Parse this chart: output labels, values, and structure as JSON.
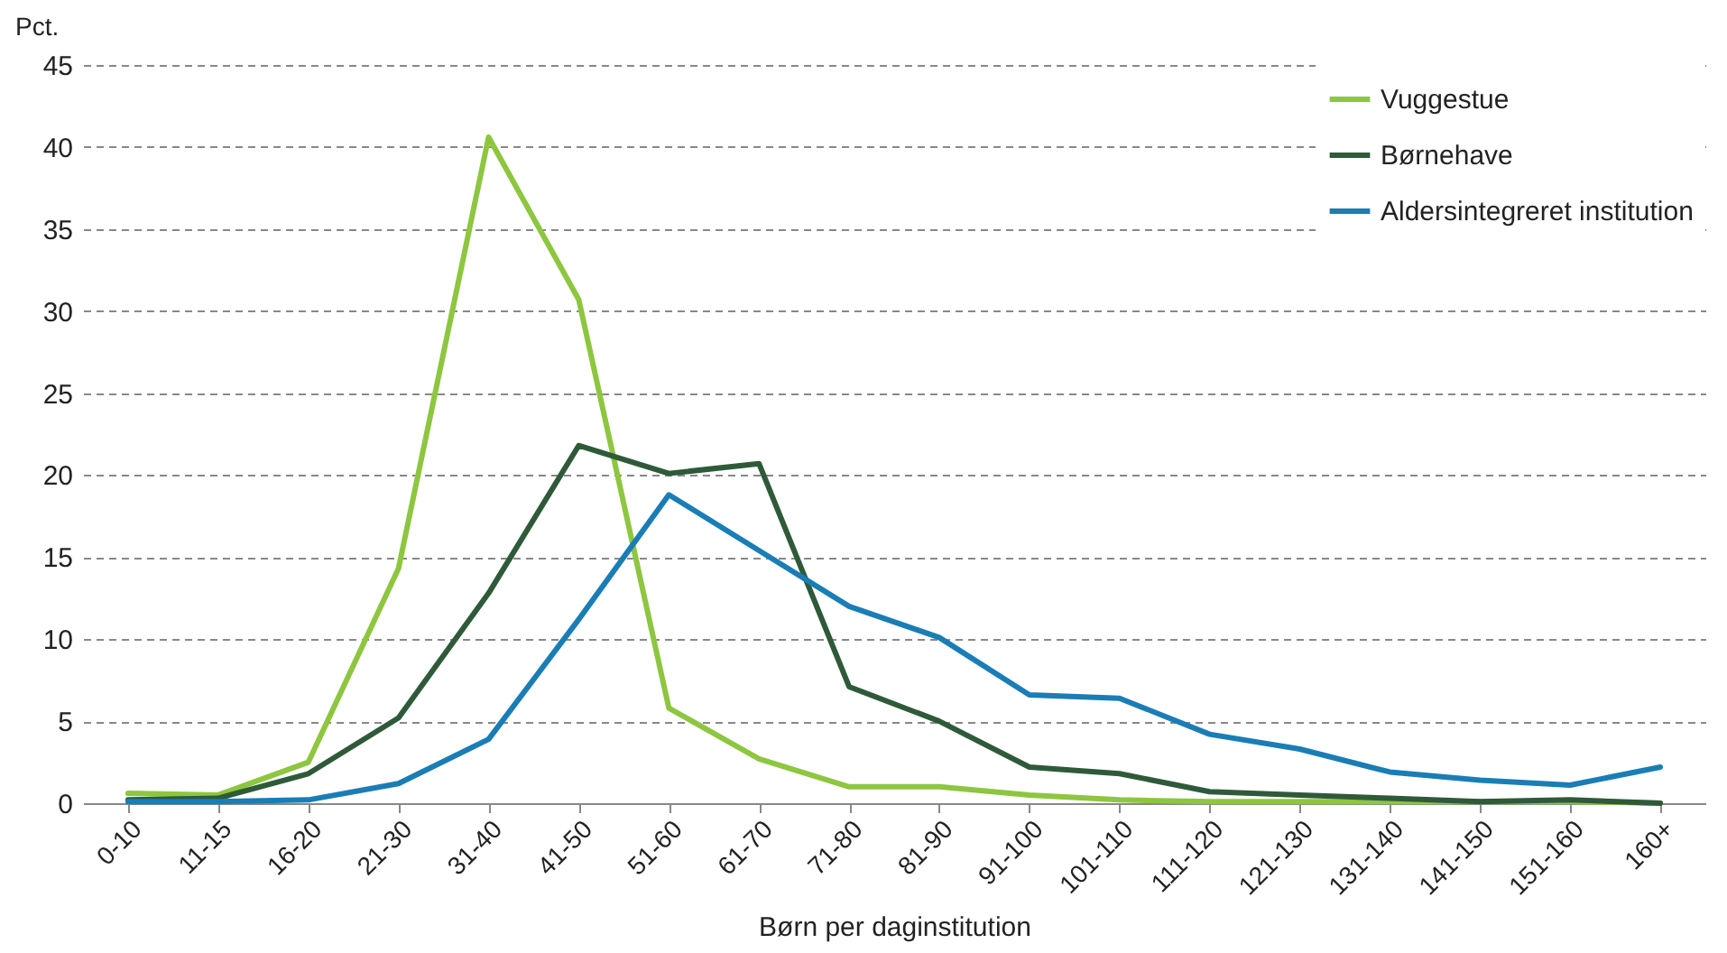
{
  "chart_data": {
    "type": "line",
    "xlabel": "Børn per daginstitution",
    "ylabel": "Pct.",
    "categories": [
      "0-10",
      "11-15",
      "16-20",
      "21-30",
      "31-40",
      "41-50",
      "51-60",
      "61-70",
      "71-80",
      "81-90",
      "91-100",
      "101-110",
      "111-120",
      "121-130",
      "131-140",
      "141-150",
      "151-160",
      "160+"
    ],
    "series": [
      {
        "name": "Vuggestue",
        "color": "#8dc63f",
        "values": [
          0.6,
          0.5,
          2.5,
          14.3,
          40.6,
          30.7,
          5.8,
          2.7,
          1.0,
          1.0,
          0.5,
          0.2,
          0.1,
          0.1,
          0.1,
          0.1,
          0.1,
          0.0
        ]
      },
      {
        "name": "Børnehave",
        "color": "#2f5a3a",
        "values": [
          0.2,
          0.3,
          1.8,
          5.2,
          12.8,
          21.8,
          20.1,
          20.7,
          7.1,
          5.0,
          2.2,
          1.8,
          0.7,
          0.5,
          0.3,
          0.1,
          0.2,
          0.0
        ]
      },
      {
        "name": "Aldersintegreret institution",
        "color": "#1a7db5",
        "values": [
          0.1,
          0.1,
          0.2,
          1.2,
          3.9,
          11.2,
          18.8,
          15.4,
          12.0,
          10.1,
          6.6,
          6.4,
          4.2,
          3.3,
          1.9,
          1.4,
          1.1,
          2.2
        ]
      }
    ],
    "ylim": [
      0,
      45
    ],
    "yticks": [
      0,
      5,
      10,
      15,
      20,
      25,
      30,
      35,
      40,
      45
    ],
    "grid": "y",
    "legend": "top right",
    "line_style": "solid",
    "marker": "none"
  }
}
